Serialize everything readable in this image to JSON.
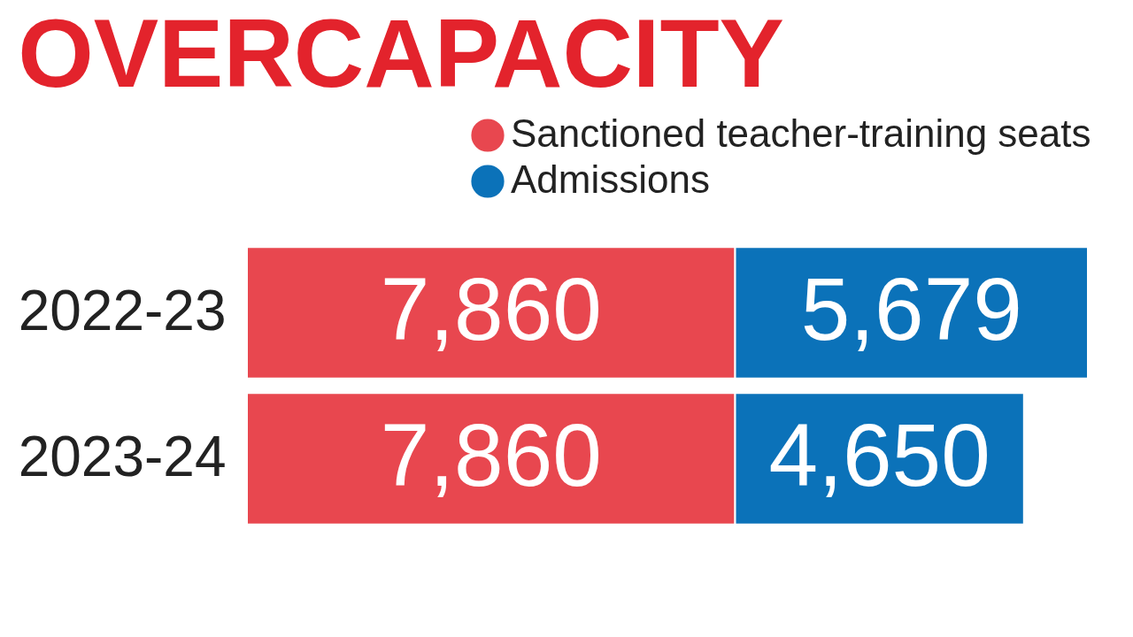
{
  "chart_data": {
    "type": "bar",
    "orientation": "horizontal",
    "stacked": true,
    "title": "OVERCAPACITY",
    "categories": [
      "2022-23",
      "2023-24"
    ],
    "series": [
      {
        "name": "Sanctioned teacher-training seats",
        "color": "#e8474f",
        "values": [
          7860,
          7860
        ],
        "value_labels": [
          "7,860",
          "7,860"
        ]
      },
      {
        "name": "Admissions",
        "color": "#0b72b9",
        "values": [
          5679,
          4650
        ],
        "value_labels": [
          "5,679",
          "4,650"
        ]
      }
    ],
    "legend": "top right"
  }
}
